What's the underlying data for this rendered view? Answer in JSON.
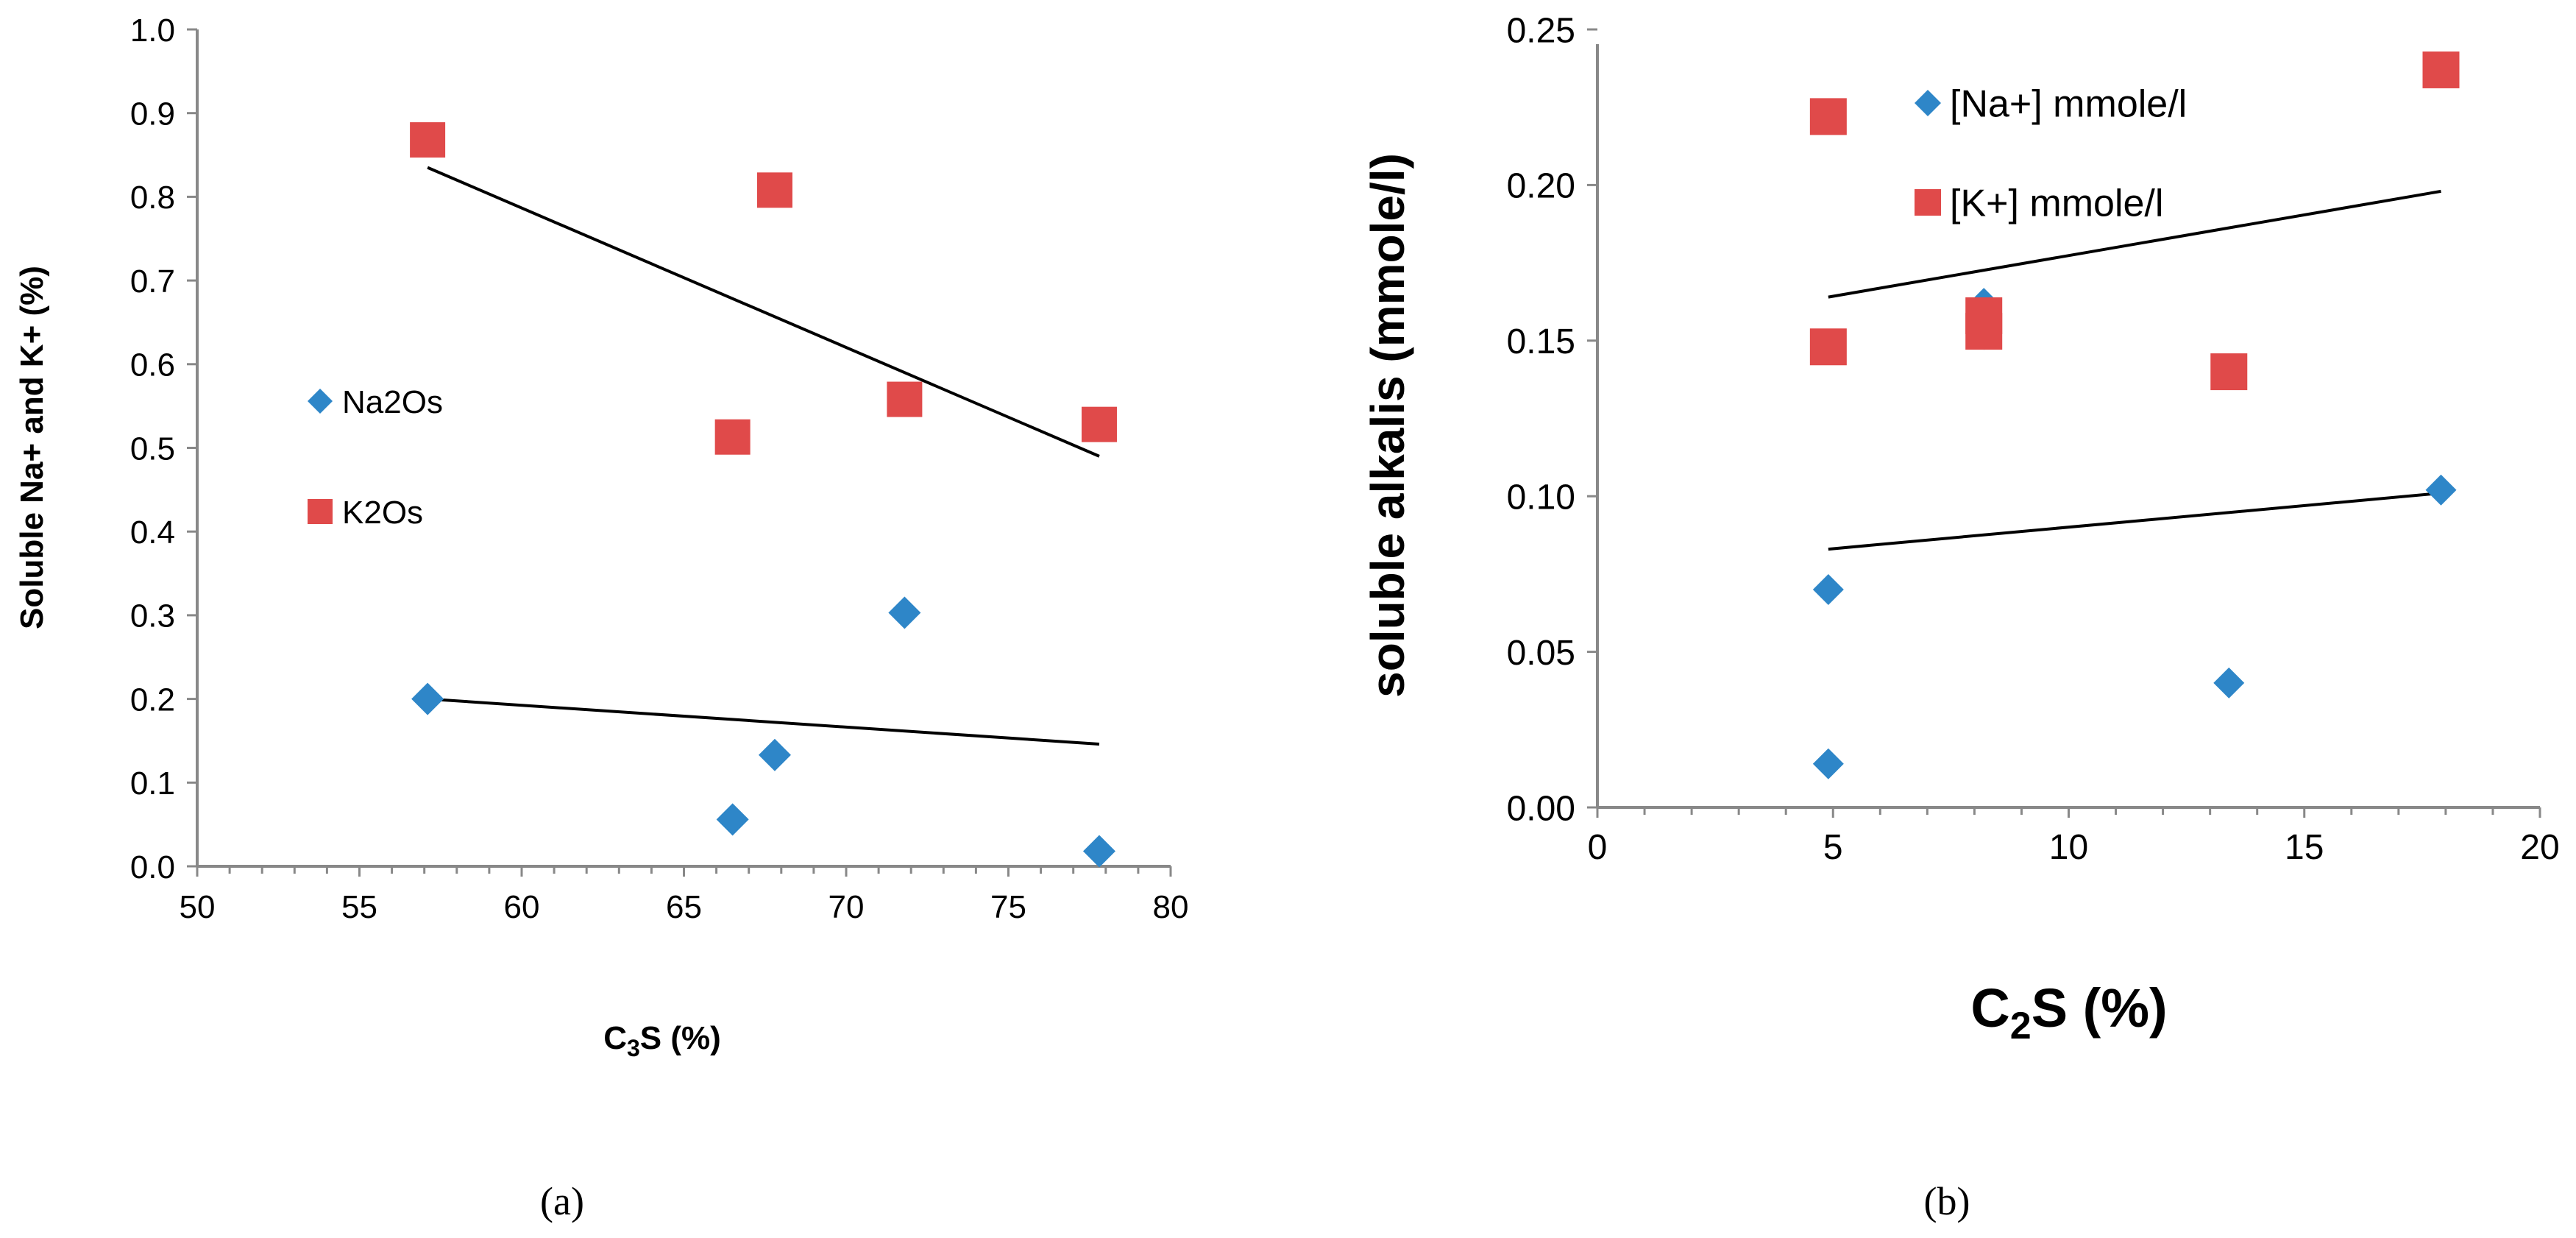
{
  "chart_data": [
    {
      "type": "scatter",
      "panel_label": "(a)",
      "xlabel": "C3S (%)",
      "xlabel_parts": {
        "base": "C",
        "sub": "3",
        "rest": "S (%)"
      },
      "ylabel": "Soluble Na+ and K+ (%)",
      "xlim": [
        50,
        80
      ],
      "ylim": [
        0,
        1.0
      ],
      "x_ticks": [
        50,
        55,
        60,
        65,
        70,
        75,
        80
      ],
      "y_ticks": [
        "0.0",
        "0.1",
        "0.2",
        "0.3",
        "0.4",
        "0.5",
        "0.6",
        "0.7",
        "0.8",
        "0.9",
        "1.0"
      ],
      "grid": false,
      "legend_position": "left-middle",
      "series": [
        {
          "name": "Na2Os",
          "marker": "diamond",
          "color": "#2E86C8",
          "points": [
            [
              57.1,
              0.2
            ],
            [
              66.5,
              0.056
            ],
            [
              67.8,
              0.133
            ],
            [
              71.8,
              0.303
            ],
            [
              77.8,
              0.018
            ]
          ],
          "trendline": [
            [
              57.1,
              0.2
            ],
            [
              77.8,
              0.146
            ]
          ]
        },
        {
          "name": "K2Os",
          "marker": "square",
          "color": "#E04A4A",
          "points": [
            [
              57.1,
              0.868
            ],
            [
              66.5,
              0.513
            ],
            [
              67.8,
              0.808
            ],
            [
              71.8,
              0.558
            ],
            [
              77.8,
              0.528
            ]
          ],
          "trendline": [
            [
              57.1,
              0.835
            ],
            [
              77.8,
              0.49
            ]
          ]
        }
      ]
    },
    {
      "type": "scatter",
      "panel_label": "(b)",
      "xlabel": "C2S (%)",
      "xlabel_parts": {
        "base": "C",
        "sub": "2",
        "rest": "S (%)"
      },
      "ylabel": "soluble alkalis (mmole/l)",
      "xlim": [
        0,
        20
      ],
      "ylim": [
        0,
        0.25
      ],
      "x_ticks": [
        0,
        5,
        10,
        15,
        20
      ],
      "y_ticks": [
        "0.00",
        "0.05",
        "0.10",
        "0.15",
        "0.20",
        "0.25"
      ],
      "grid": false,
      "legend_position": "top-middle",
      "series": [
        {
          "name": "[Na+] mmole/l",
          "marker": "diamond",
          "color": "#2E86C8",
          "points": [
            [
              4.9,
              0.014
            ],
            [
              4.9,
              0.07
            ],
            [
              8.2,
              0.162
            ],
            [
              8.2,
              0.152
            ],
            [
              13.4,
              0.04
            ],
            [
              17.9,
              0.102
            ]
          ],
          "trendline": [
            [
              4.9,
              0.083
            ],
            [
              17.9,
              0.101
            ]
          ]
        },
        {
          "name": "[K+] mmole/l",
          "marker": "square",
          "color": "#E04A4A",
          "points": [
            [
              4.9,
              0.222
            ],
            [
              4.9,
              0.148
            ],
            [
              8.2,
              0.158
            ],
            [
              8.2,
              0.153
            ],
            [
              13.4,
              0.14
            ],
            [
              17.9,
              0.237
            ]
          ],
          "trendline": [
            [
              4.9,
              0.164
            ],
            [
              17.9,
              0.198
            ]
          ]
        }
      ]
    }
  ]
}
